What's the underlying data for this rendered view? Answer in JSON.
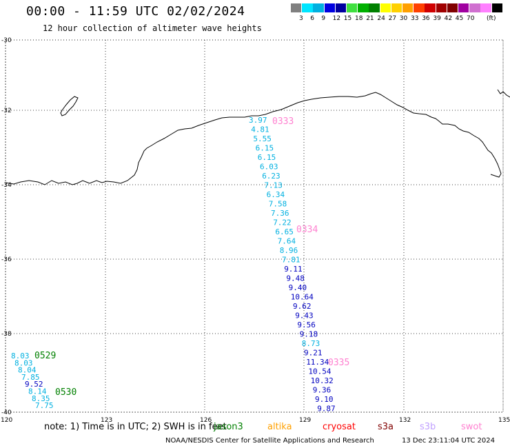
{
  "title": "00:00 - 11:59 UTC 02/02/2024",
  "subtitle": "12 hour collection of altimeter wave heights",
  "legend": {
    "unit": "(ft)",
    "colors": [
      "#808080",
      "#00e5ff",
      "#00b0e0",
      "#0000e0",
      "#0000a0",
      "#40e040",
      "#00b000",
      "#008000",
      "#ffff00",
      "#ffd000",
      "#ffa000",
      "#ff4000",
      "#d00000",
      "#a00000",
      "#800000",
      "#a000a0",
      "#d070d0",
      "#ff80ff",
      "#000000"
    ],
    "labels": [
      "3",
      "6",
      "9",
      "12",
      "15",
      "18",
      "21",
      "24",
      "27",
      "30",
      "33",
      "36",
      "39",
      "42",
      "45",
      "70"
    ]
  },
  "axes": {
    "lat_labels": [
      "-30",
      "-32",
      "-34",
      "-36",
      "-38",
      "-40"
    ],
    "lon_labels": [
      "120",
      "123",
      "126",
      "129",
      "132",
      "135"
    ]
  },
  "track_main": [
    {
      "v": "3.97",
      "c": "#00b0e0"
    },
    {
      "v": "4.81",
      "c": "#00b0e0"
    },
    {
      "v": "5.55",
      "c": "#00b0e0"
    },
    {
      "v": "6.15",
      "c": "#00b0e0"
    },
    {
      "v": "6.15",
      "c": "#00b0e0"
    },
    {
      "v": "6.03",
      "c": "#00b0e0"
    },
    {
      "v": "6.23",
      "c": "#00b0e0"
    },
    {
      "v": "7.13",
      "c": "#00b0e0"
    },
    {
      "v": "6.34",
      "c": "#00b0e0"
    },
    {
      "v": "7.58",
      "c": "#00b0e0"
    },
    {
      "v": "7.36",
      "c": "#00b0e0"
    },
    {
      "v": "7.22",
      "c": "#00b0e0"
    },
    {
      "v": "6.65",
      "c": "#00b0e0"
    },
    {
      "v": "7.64",
      "c": "#00b0e0"
    },
    {
      "v": "8.96",
      "c": "#00b0e0"
    },
    {
      "v": "7.81",
      "c": "#00b0e0"
    },
    {
      "v": "9.11",
      "c": "#0000c0"
    },
    {
      "v": "9.48",
      "c": "#0000c0"
    },
    {
      "v": "9.40",
      "c": "#0000c0"
    },
    {
      "v": "10.64",
      "c": "#0000c0"
    },
    {
      "v": "9.62",
      "c": "#0000c0"
    },
    {
      "v": "9.43",
      "c": "#0000c0"
    },
    {
      "v": "9.56",
      "c": "#0000c0"
    },
    {
      "v": "9.18",
      "c": "#0000c0"
    },
    {
      "v": "8.73",
      "c": "#00b0e0"
    },
    {
      "v": "9.21",
      "c": "#0000c0"
    },
    {
      "v": "11.34",
      "c": "#0000c0"
    },
    {
      "v": "10.54",
      "c": "#0000c0"
    },
    {
      "v": "10.32",
      "c": "#0000c0"
    },
    {
      "v": "9.36",
      "c": "#0000c0"
    },
    {
      "v": "9.10",
      "c": "#0000c0"
    },
    {
      "v": "9.87",
      "c": "#0000c0"
    }
  ],
  "track_west": [
    {
      "v": "8.03",
      "c": "#00b0e0"
    },
    {
      "v": "8.03",
      "c": "#00b0e0"
    },
    {
      "v": "8.04",
      "c": "#00b0e0"
    },
    {
      "v": "7.85",
      "c": "#00b0e0"
    },
    {
      "v": "9.52",
      "c": "#0000c0"
    },
    {
      "v": "8.14",
      "c": "#00b0e0"
    },
    {
      "v": "8.35",
      "c": "#00b0e0"
    },
    {
      "v": "7.75",
      "c": "#00b0e0"
    }
  ],
  "pass_times": [
    {
      "t": "0333",
      "c": "#ff80d0"
    },
    {
      "t": "0334",
      "c": "#ff80d0"
    },
    {
      "t": "0335",
      "c": "#ff80d0"
    },
    {
      "t": "0529",
      "c": "#008000"
    },
    {
      "t": "0530",
      "c": "#008000"
    }
  ],
  "note": {
    "text": "note: 1) Time is in UTC; 2) SWH is in feet",
    "missions": [
      {
        "name": "jason3",
        "c": "#008000"
      },
      {
        "name": "altika",
        "c": "#ffa000"
      },
      {
        "name": "cryosat",
        "c": "#ff0000"
      },
      {
        "name": "s3a",
        "c": "#800000"
      },
      {
        "name": "s3b",
        "c": "#c0a0ff"
      },
      {
        "name": "swot",
        "c": "#ff80d0"
      }
    ]
  },
  "footer": {
    "left": "NOAA/NESDIS Center for Satellite Applications and Research",
    "right": "13 Dec 23:11:04 UTC 2024"
  }
}
